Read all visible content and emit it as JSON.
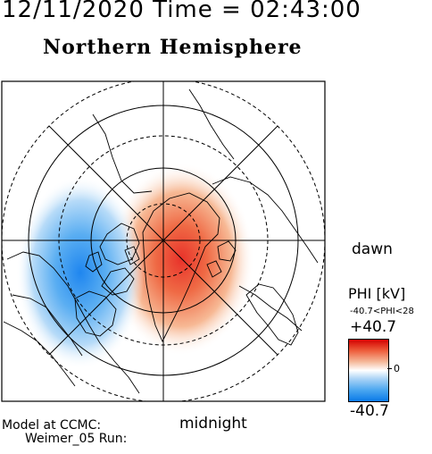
{
  "header": {
    "datetime": "12/11/2020 Time = 02:43:00"
  },
  "map": {
    "title": "Northern Hemisphere",
    "dawn_label": "dawn",
    "midnight_label": "midnight"
  },
  "colorbar": {
    "title": "PHI [kV]",
    "range_text": "-40.7<PHI<28",
    "max_label": "+40.7",
    "zero_label": "0",
    "min_label": "-40.7",
    "colors": {
      "high": "#d40000",
      "mid": "#ffffff",
      "low": "#0a7ae8"
    }
  },
  "credit": {
    "line1": "Model at CCMC:",
    "line2": "Weimer_05 Run:"
  }
}
